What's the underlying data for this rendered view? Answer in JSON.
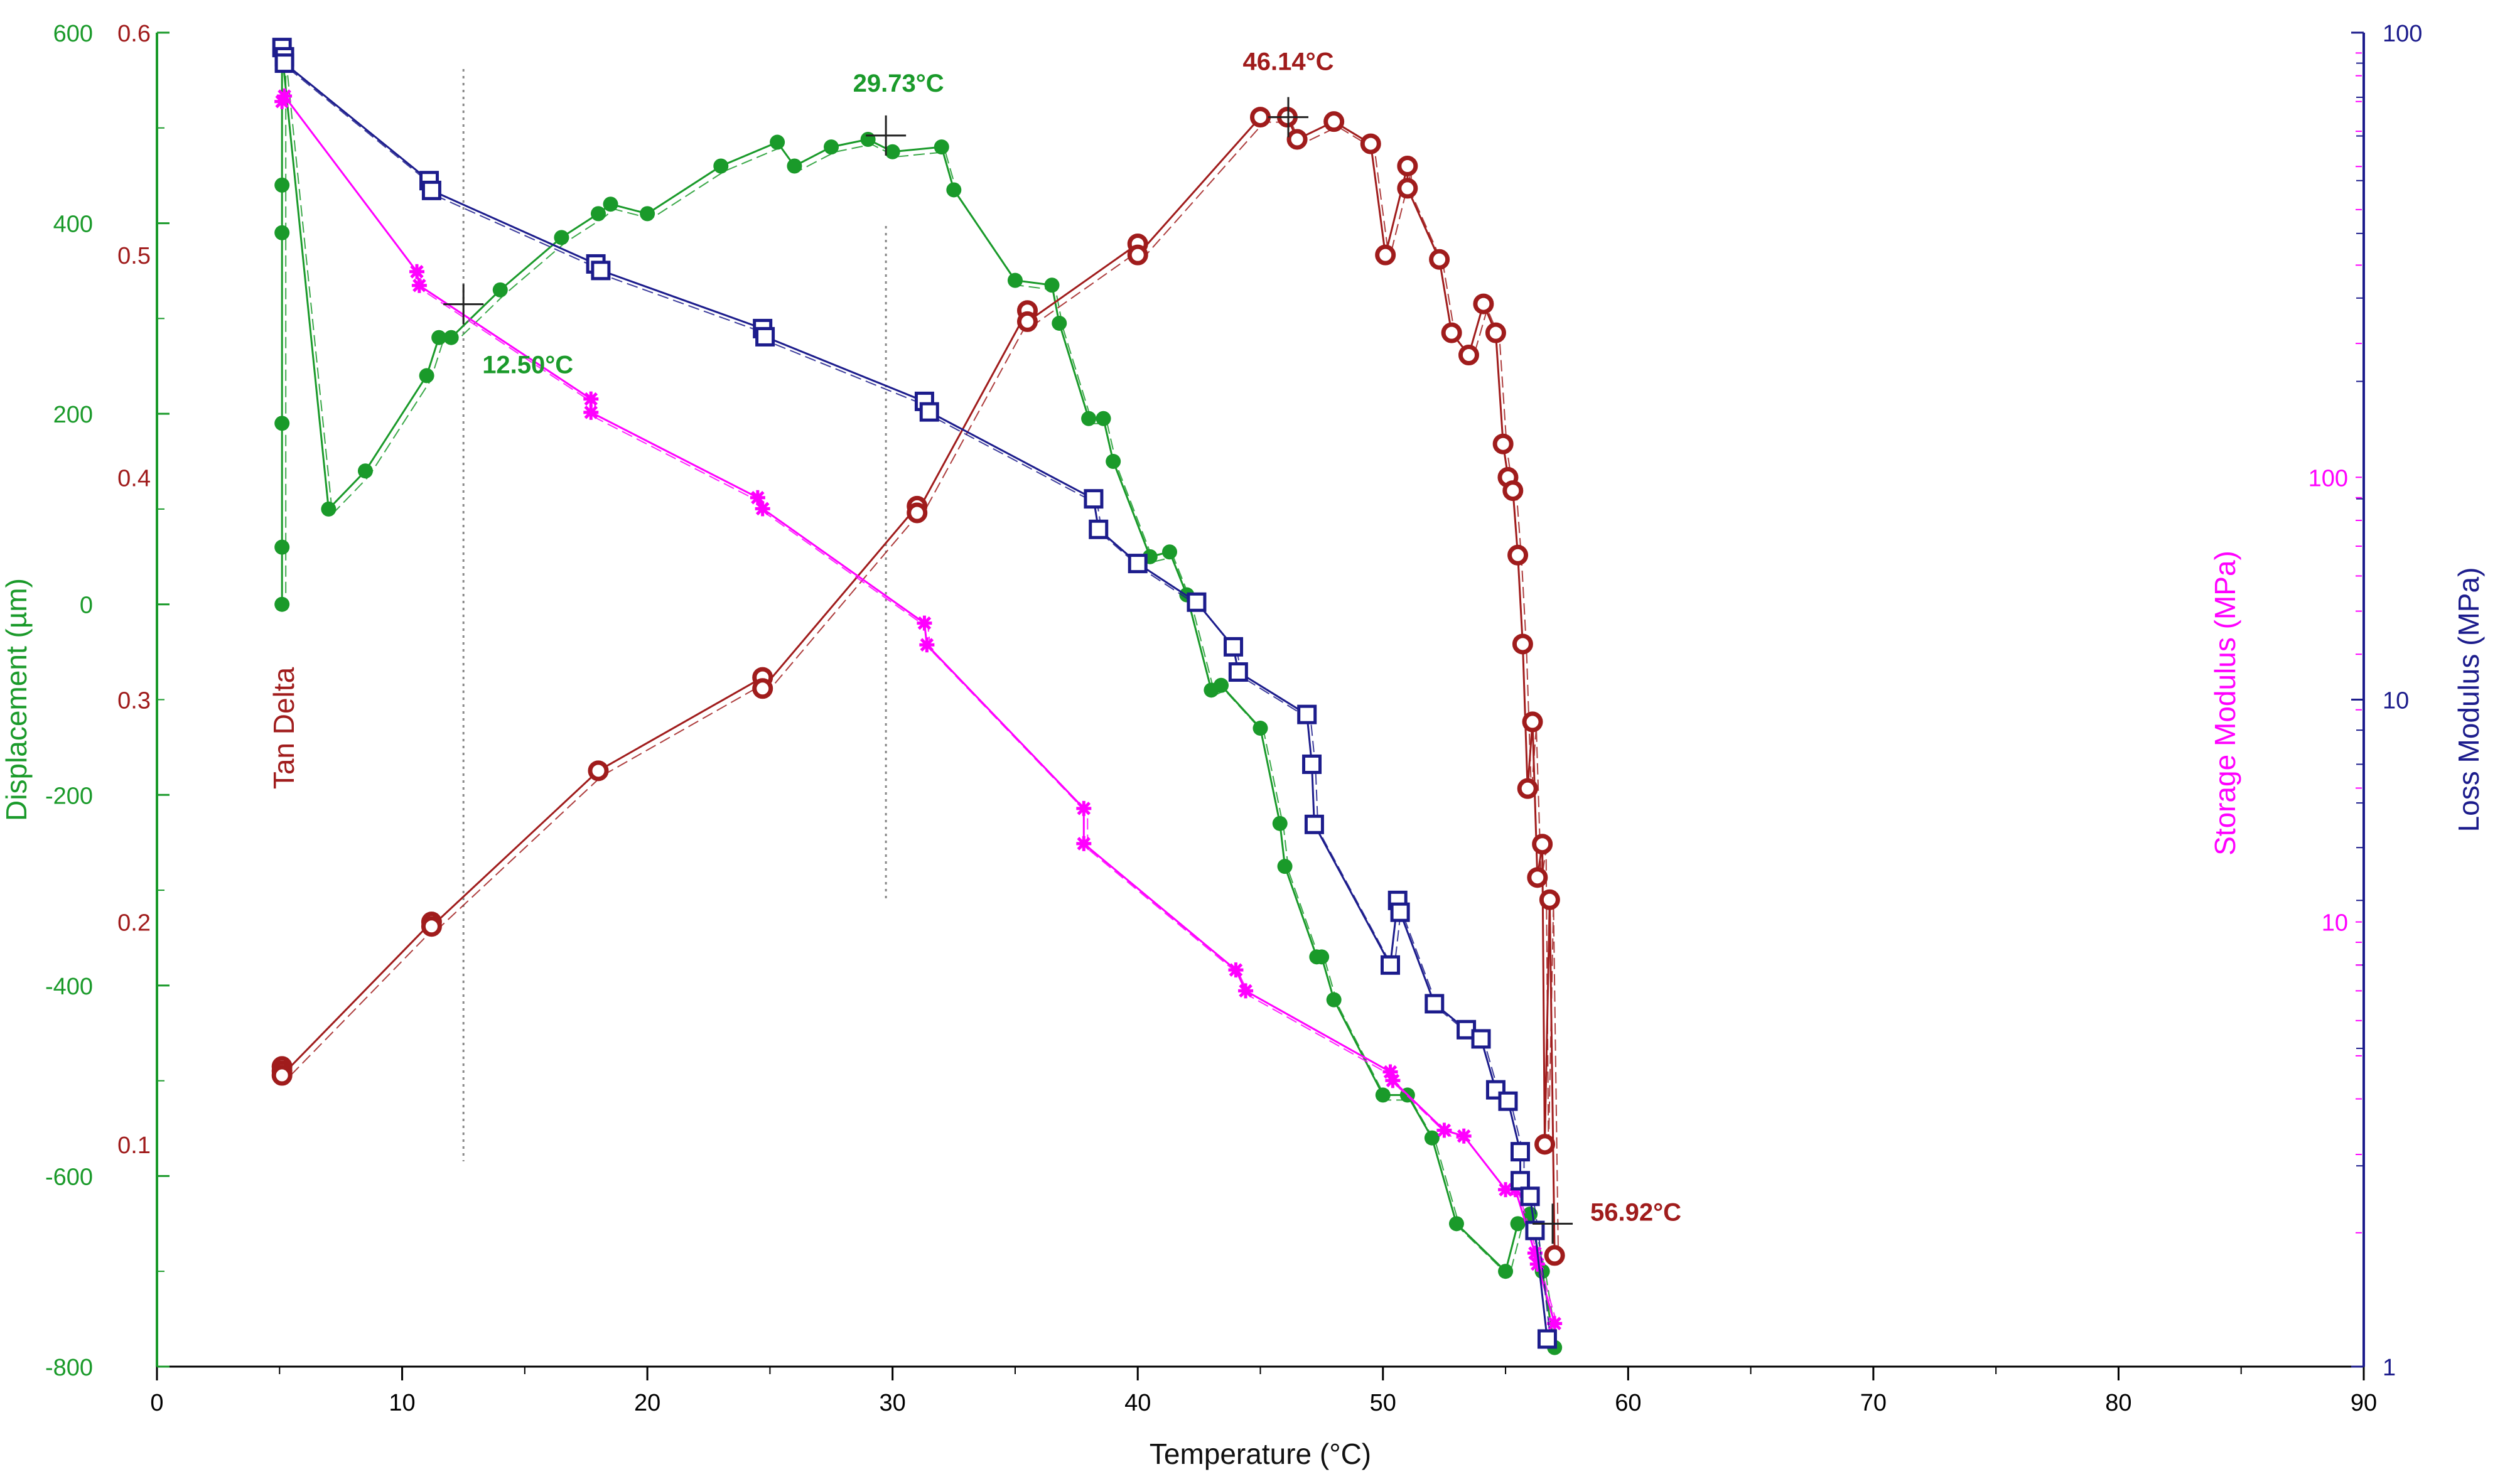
{
  "chart_data": {
    "type": "line",
    "xlabel": "Temperature (°C)",
    "xlim": [
      0,
      90
    ],
    "x_ticks": [
      "0",
      "10",
      "20",
      "30",
      "40",
      "50",
      "60",
      "70",
      "80",
      "90"
    ],
    "axes": {
      "displacement": {
        "label": "Displacement (µm)",
        "color": "#1a9a2a",
        "lim": [
          -800,
          600
        ],
        "ticks": [
          "600",
          "400",
          "200",
          "0",
          "-200",
          "-400",
          "-600",
          "-800"
        ]
      },
      "tan_delta": {
        "label": "Tan Delta",
        "color": "#a01c1c",
        "lim": [
          0.0,
          0.6
        ],
        "ticks": [
          "0.6",
          "0.5",
          "0.4",
          "0.3",
          "0.2",
          "0.1"
        ]
      },
      "storage_modulus": {
        "label": "Storage Modulus (MPa)",
        "color": "#ff00ff",
        "scale": "log",
        "lim": [
          1,
          1000
        ],
        "ticks": [
          "100",
          "10"
        ]
      },
      "loss_modulus": {
        "label": "Loss Modulus (MPa)",
        "color": "#1c1c8c",
        "scale": "log",
        "lim": [
          1,
          100
        ],
        "ticks": [
          "100",
          "10",
          "1"
        ]
      }
    },
    "series": [
      {
        "name": "Displacement",
        "axis": "displacement",
        "color": "#1a9a2a",
        "marker": "dot",
        "x": [
          5.1,
          5.1,
          5.1,
          5.1,
          5.1,
          5.1,
          7,
          8.5,
          11,
          11.5,
          12,
          14,
          16.5,
          18,
          18.5,
          20,
          23,
          25.3,
          26,
          27.5,
          29,
          30,
          32,
          32.5,
          35,
          36.5,
          36.8,
          38,
          38.6,
          39,
          40.5,
          41.3,
          42,
          43,
          43.4,
          45,
          45.8,
          46,
          47.3,
          47.5,
          48,
          50,
          51,
          52,
          53,
          55,
          55.5,
          56,
          56.5,
          57
        ],
        "y": [
          0,
          60,
          190,
          390,
          440,
          580,
          100,
          140,
          240,
          280,
          280,
          330,
          385,
          410,
          420,
          410,
          460,
          485,
          460,
          480,
          488,
          475,
          480,
          435,
          340,
          335,
          295,
          195,
          195,
          150,
          50,
          55,
          10,
          -90,
          -85,
          -130,
          -230,
          -275,
          -370,
          -370,
          -415,
          -515,
          -515,
          -560,
          -650,
          -700,
          -650,
          -640,
          -700,
          -780
        ]
      },
      {
        "name": "Tan Delta",
        "axis": "tan_delta",
        "color": "#a01c1c",
        "marker": "ring",
        "x": [
          5.1,
          5.1,
          5.1,
          11.2,
          11.2,
          18,
          24.7,
          24.7,
          31,
          31,
          35.5,
          35.5,
          40,
          40,
          45,
          46.1,
          46.5,
          48,
          49.5,
          50.1,
          51,
          51,
          52.3,
          52.8,
          53.5,
          54.1,
          54.6,
          54.9,
          55.1,
          55.3,
          55.5,
          55.7,
          55.9,
          56.1,
          56.3,
          56.5,
          56.6,
          56.8,
          57
        ],
        "y": [
          0.135,
          0.133,
          0.131,
          0.2,
          0.198,
          0.268,
          0.31,
          0.305,
          0.387,
          0.384,
          0.475,
          0.47,
          0.505,
          0.5,
          0.562,
          0.562,
          0.552,
          0.56,
          0.55,
          0.5,
          0.54,
          0.53,
          0.498,
          0.465,
          0.455,
          0.478,
          0.465,
          0.415,
          0.4,
          0.394,
          0.365,
          0.325,
          0.26,
          0.29,
          0.22,
          0.235,
          0.1,
          0.21,
          0.05
        ]
      },
      {
        "name": "Storage Modulus",
        "axis": "storage_modulus",
        "color": "#ff00ff",
        "marker": "star",
        "x": [
          5.1,
          5.2,
          10.6,
          10.7,
          17.7,
          17.7,
          24.5,
          24.7,
          31.3,
          31.4,
          37.8,
          37.8,
          44,
          44.4,
          50.3,
          50.4,
          52.5,
          53.3,
          55,
          55.4,
          56.2,
          56.3,
          57
        ],
        "y": [
          700,
          720,
          290,
          270,
          150,
          140,
          90,
          85,
          47,
          42,
          18,
          15,
          7.8,
          7,
          4.6,
          4.4,
          3.4,
          3.3,
          2.5,
          2.5,
          1.8,
          1.7,
          1.25
        ]
      },
      {
        "name": "Loss Modulus",
        "axis": "loss_modulus",
        "color": "#1c1c8c",
        "marker": "square",
        "x": [
          5.1,
          5.2,
          5.2,
          11.1,
          11.2,
          17.9,
          18.1,
          24.7,
          24.8,
          31.3,
          31.5,
          38.2,
          38.4,
          40,
          42.4,
          43.9,
          44.1,
          46.9,
          47.1,
          47.2,
          50.6,
          50.7,
          50.3,
          52.1,
          53.4,
          54,
          54.6,
          55.1,
          55.6,
          55.6,
          56,
          56.2,
          56.7
        ],
        "y": [
          95,
          92,
          90,
          60,
          58,
          45,
          44,
          36,
          35,
          28,
          27,
          20,
          18,
          16,
          14,
          12,
          11,
          9.5,
          8,
          6.5,
          5,
          4.8,
          4,
          3.5,
          3.2,
          3.1,
          2.6,
          2.5,
          2.1,
          1.9,
          1.8,
          1.6,
          1.1
        ]
      }
    ],
    "annotations": [
      {
        "text": "12.50°C",
        "x": 12.5,
        "series": "Displacement",
        "color": "#1a9a2a"
      },
      {
        "text": "29.73°C",
        "x": 29.73,
        "series": "Displacement",
        "color": "#1a9a2a"
      },
      {
        "text": "46.14°C",
        "x": 46.14,
        "series": "Tan Delta",
        "color": "#a01c1c"
      },
      {
        "text": "56.92°C",
        "x": 56.92,
        "series": "Storage Modulus",
        "color": "#a01c1c"
      }
    ],
    "grid": false,
    "legend": "none"
  }
}
